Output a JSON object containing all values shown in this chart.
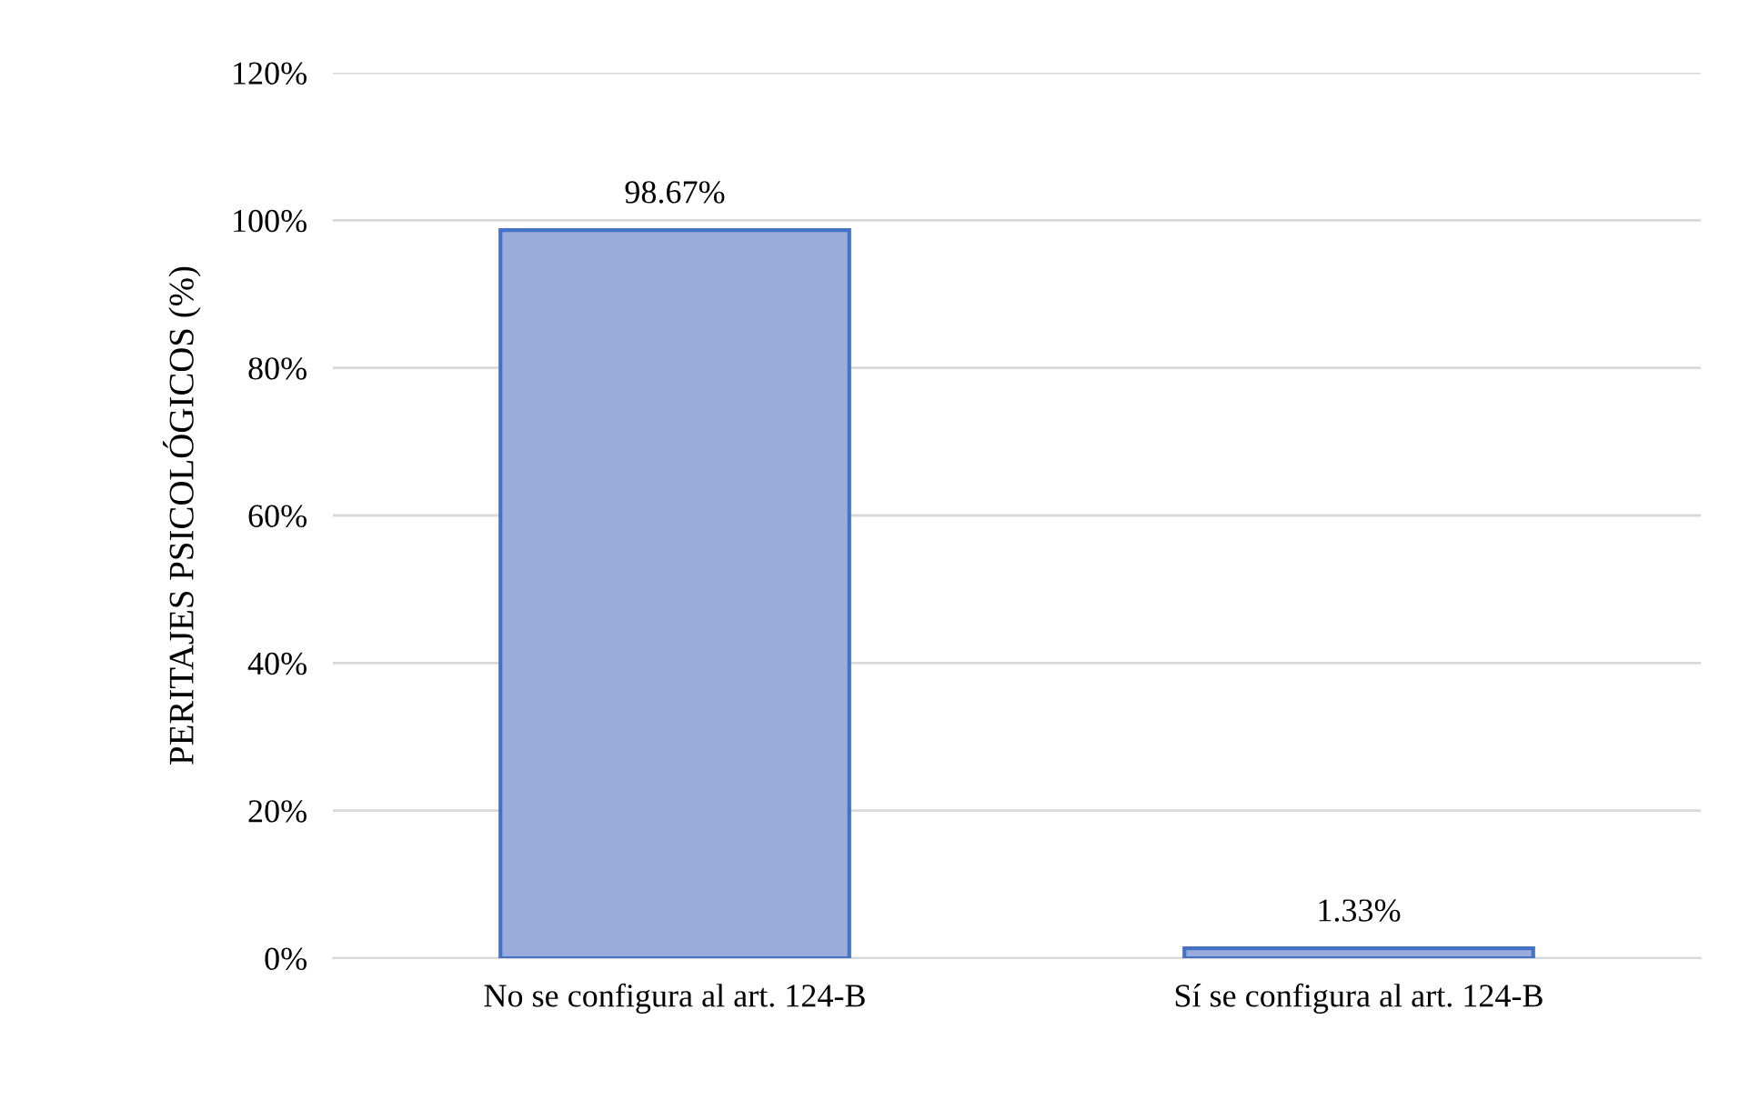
{
  "chart_data": {
    "type": "bar",
    "ylabel": "PERITAJES PSICOLÓGICOS (%)",
    "categories": [
      "No se configura al art. 124-B",
      "Sí se configura al art. 124-B"
    ],
    "values": [
      98.67,
      1.33
    ],
    "color": "#9aacdc",
    "value_labels": [
      "98.67%",
      "1.33%"
    ],
    "ylim": [
      0,
      120
    ],
    "yticks": [
      {
        "value": 0,
        "label": "0%"
      },
      {
        "value": 20,
        "label": "20%"
      },
      {
        "value": 40,
        "label": "40%"
      },
      {
        "value": 60,
        "label": "60%"
      },
      {
        "value": 80,
        "label": "80%"
      },
      {
        "value": 100,
        "label": "100%"
      },
      {
        "value": 120,
        "label": "120%"
      }
    ],
    "grid": "y",
    "legend": false
  }
}
